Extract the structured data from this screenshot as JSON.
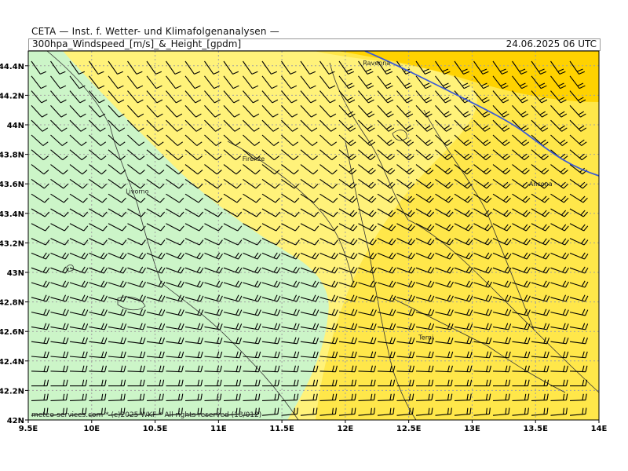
{
  "header": {
    "title": "CETA — Inst. f. Wetter- und Klimafolgenanalysen —",
    "subtitle": "300hpa_Windspeed_[m/s]_&_Height_[gpdm]",
    "datetime": "24.06.2025 06 UTC"
  },
  "map": {
    "lon_range": [
      9.5,
      14
    ],
    "lat_range": [
      42,
      44.5
    ],
    "lon_ticks": [
      "9.5E",
      "10E",
      "10.5E",
      "11E",
      "11.5E",
      "12E",
      "12.5E",
      "13E",
      "13.5E",
      "14E"
    ],
    "lat_ticks": [
      "42N",
      "42.2N",
      "42.4N",
      "42.6N",
      "42.8N",
      "43N",
      "43.2N",
      "43.4N",
      "43.6N",
      "43.8N",
      "44N",
      "44.2N",
      "44.4N"
    ],
    "cities": [
      {
        "name": "Ravenna",
        "lon": 12.2,
        "lat": 44.42
      },
      {
        "name": "Firenze",
        "lon": 11.25,
        "lat": 43.77
      },
      {
        "name": "Livorno",
        "lon": 10.33,
        "lat": 43.55
      },
      {
        "name": "Ancona",
        "lon": 13.51,
        "lat": 43.6
      },
      {
        "name": "Terni",
        "lon": 12.64,
        "lat": 42.56
      }
    ],
    "colors": {
      "light_green": "#ccf5c8",
      "light_yellow": "#fff27a",
      "yellow": "#ffe74a",
      "gold": "#ffd200",
      "contour": "#3b5bd6",
      "grid": "#a0a0a0"
    },
    "copyright": "meteo-services.com * (c)2025 WKF * All rights reserved (18/012)"
  }
}
